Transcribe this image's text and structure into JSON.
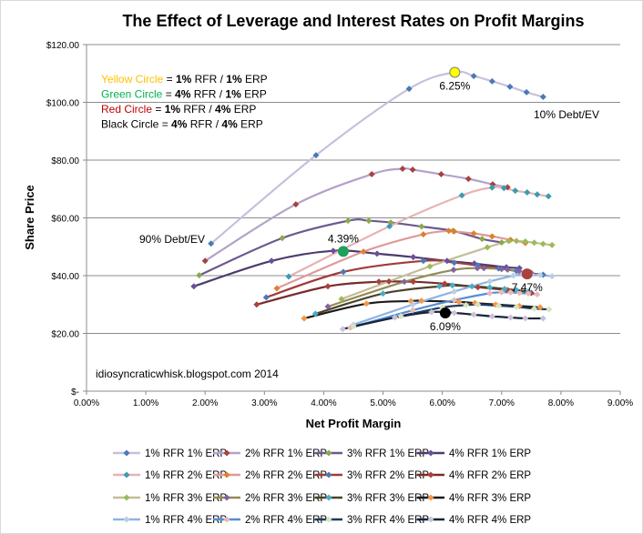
{
  "chart_data": {
    "type": "line",
    "title": "The Effect of Leverage and Interest Rates on Profit Margins",
    "xlabel": "Net Profit Margin",
    "ylabel": "Share Price",
    "xlim": [
      0,
      9
    ],
    "ylim": [
      0,
      120
    ],
    "x_ticks": [
      "0.00%",
      "1.00%",
      "2.00%",
      "3.00%",
      "4.00%",
      "5.00%",
      "6.00%",
      "7.00%",
      "8.00%",
      "9.00%"
    ],
    "y_ticks": [
      "$-",
      "$20.00",
      "$40.00",
      "$60.00",
      "$80.00",
      "$100.00",
      "$120.00"
    ],
    "grid": "horizontal",
    "legend_position": "bottom",
    "series": [
      {
        "name": "1% RFR 1% ERP",
        "line": "#c9bfdd",
        "marker": "#4a7ab5",
        "x": [
          2.1,
          3.87,
          5.44,
          6.21,
          6.53,
          6.84,
          7.14,
          7.42,
          7.7
        ],
        "y": [
          51.1,
          81.7,
          104.7,
          110.4,
          109.1,
          107.3,
          105.4,
          103.5,
          101.9
        ]
      },
      {
        "name": "2% RFR 1% ERP",
        "line": "#b3a2c9",
        "marker": "#a8423f",
        "x": [
          2.0,
          3.53,
          4.81,
          5.33,
          5.5,
          5.98,
          6.44,
          6.85,
          7.1
        ],
        "y": [
          45.1,
          64.7,
          75.1,
          77.0,
          76.7,
          75.1,
          73.5,
          71.6,
          70.6
        ]
      },
      {
        "name": "3% RFR 1% ERP",
        "line": "#6b5a8e",
        "marker": "#8aaa4a",
        "x": [
          1.9,
          3.3,
          4.41,
          4.76,
          5.13,
          5.65,
          6.18,
          6.67,
          7.0
        ],
        "y": [
          40.1,
          53.0,
          59.0,
          59.0,
          58.4,
          57.0,
          55.5,
          52.7,
          51.5
        ]
      },
      {
        "name": "4% RFR 1% ERP",
        "line": "#4c3b6b",
        "marker": "#6b4f9a",
        "x": [
          1.81,
          3.12,
          4.16,
          4.9,
          5.51,
          6.08,
          6.54,
          7.08,
          7.3
        ],
        "y": [
          36.3,
          45.1,
          48.6,
          47.6,
          46.4,
          45.1,
          44.2,
          42.9,
          42.6
        ]
      },
      {
        "name": "1% RFR 2% ERP",
        "line": "#e6b3b3",
        "marker": "#3c9bb0",
        "x": [
          3.41,
          5.11,
          6.33,
          6.84,
          7.04,
          7.23,
          7.43,
          7.6,
          7.79
        ],
        "y": [
          39.7,
          57.1,
          67.8,
          70.5,
          70.3,
          69.4,
          68.8,
          68.1,
          67.5
        ]
      },
      {
        "name": "2% RFR 2% ERP",
        "line": "#e09a9a",
        "marker": "#e07f30",
        "x": [
          3.21,
          4.67,
          5.68,
          6.11,
          6.2,
          6.53,
          6.84,
          7.15,
          7.4
        ],
        "y": [
          35.6,
          48.3,
          54.3,
          55.5,
          55.3,
          54.6,
          53.6,
          52.4,
          51.3
        ]
      },
      {
        "name": "3% RFR 2% ERP",
        "line": "#a13b3b",
        "marker": "#4a7ab5",
        "x": [
          3.03,
          4.33,
          5.68,
          6.2,
          6.6,
          6.95,
          7.25,
          7.5,
          7.7
        ],
        "y": [
          32.5,
          41.3,
          45.1,
          44.5,
          43.5,
          42.5,
          41.6,
          40.8,
          40.3
        ]
      },
      {
        "name": "4% RFR 2% ERP",
        "line": "#7a2b2b",
        "marker": "#a8423f",
        "x": [
          2.87,
          4.07,
          4.93,
          5.1,
          5.51,
          6.04,
          6.6,
          7.1,
          7.5
        ],
        "y": [
          30.0,
          36.3,
          37.9,
          38.0,
          37.9,
          37.2,
          36.0,
          35.0,
          34.0
        ]
      },
      {
        "name": "1% RFR 3% ERP",
        "line": "#c4bd97",
        "marker": "#9bbb59",
        "x": [
          4.3,
          5.79,
          6.76,
          7.12,
          7.25,
          7.4,
          7.55,
          7.7,
          7.85
        ],
        "y": [
          31.9,
          43.2,
          49.8,
          52.0,
          52.0,
          51.8,
          51.4,
          51.0,
          50.6
        ]
      },
      {
        "name": "2% RFR 3% ERP",
        "line": "#948a54",
        "marker": "#8064a2",
        "x": [
          4.07,
          5.36,
          6.19,
          6.59,
          6.7,
          7.0,
          7.1,
          7.3,
          7.5
        ],
        "y": [
          29.3,
          37.9,
          42.0,
          42.6,
          42.6,
          42.3,
          42.1,
          41.5,
          40.9
        ]
      },
      {
        "name": "3% RFR 3% ERP",
        "line": "#4a452a",
        "marker": "#4bacc6",
        "x": [
          3.86,
          5.0,
          5.95,
          6.17,
          6.5,
          6.8,
          7.05,
          7.25,
          7.45
        ],
        "y": [
          26.8,
          33.8,
          36.3,
          36.6,
          36.3,
          35.9,
          35.4,
          35.0,
          34.5
        ]
      },
      {
        "name": "4% RFR 3% ERP",
        "line": "#1a1a1a",
        "marker": "#f79646",
        "x": [
          3.67,
          4.72,
          5.47,
          5.65,
          6.28,
          6.55,
          6.9,
          7.3,
          7.65
        ],
        "y": [
          25.2,
          30.3,
          31.2,
          31.3,
          30.9,
          30.5,
          30.0,
          29.5,
          29.0
        ]
      },
      {
        "name": "1% RFR 4% ERP",
        "line": "#8eb4e3",
        "marker": "#b9cde5",
        "x": [
          4.5,
          5.5,
          6.2,
          6.8,
          7.2,
          7.35,
          7.5,
          7.65,
          7.85
        ],
        "y": [
          23.0,
          30.0,
          34.5,
          38.0,
          40.0,
          40.5,
          40.4,
          40.2,
          39.8
        ]
      },
      {
        "name": "2% RFR 4% ERP",
        "line": "#558ed5",
        "marker": "#e6b9b8",
        "x": [
          4.45,
          5.5,
          6.2,
          6.8,
          7.0,
          7.15,
          7.3,
          7.45,
          7.6
        ],
        "y": [
          22.0,
          28.0,
          31.5,
          33.9,
          34.2,
          34.2,
          34.0,
          33.8,
          33.5
        ]
      },
      {
        "name": "3% RFR 4% ERP",
        "line": "#1f3a5f",
        "marker": "#d7e4bd",
        "x": [
          4.5,
          5.3,
          6.0,
          6.4,
          6.6,
          6.95,
          7.25,
          7.55,
          7.8
        ],
        "y": [
          22.5,
          26.0,
          29.0,
          29.8,
          30.0,
          29.6,
          29.2,
          28.6,
          28.3
        ]
      },
      {
        "name": "4% RFR 4% ERP",
        "line": "#17253a",
        "marker": "#ccc1da",
        "x": [
          4.32,
          5.2,
          5.82,
          6.2,
          6.53,
          6.84,
          7.15,
          7.4,
          7.7
        ],
        "y": [
          21.5,
          25.5,
          27.4,
          27.1,
          26.5,
          25.9,
          25.5,
          25.2,
          25.2
        ]
      }
    ],
    "highlight_points": [
      {
        "color": "#ffff00",
        "x": 6.21,
        "y": 110.4,
        "label": "6.25%",
        "label_pos": "below"
      },
      {
        "color": "#1fa05a",
        "x": 4.33,
        "y": 48.4,
        "label": "4.39%",
        "label_pos": "above"
      },
      {
        "color": "#a8423f",
        "x": 7.43,
        "y": 40.6,
        "label": "7.47%",
        "label_pos": "below"
      },
      {
        "color": "#000000",
        "x": 6.05,
        "y": 27.1,
        "label": "6.09%",
        "label_pos": "below"
      }
    ],
    "annotations": {
      "debt_90": "90% Debt/EV",
      "debt_10": "10% Debt/EV",
      "watermark": "idiosyncraticwhisk.blogspot.com    2014",
      "key_lines": [
        [
          {
            "t": "Yellow Circle",
            "c": "#ffc000",
            "b": false
          },
          {
            "t": " = ",
            "c": "#000",
            "b": false
          },
          {
            "t": "1%",
            "c": "#000",
            "b": true
          },
          {
            "t": " RFR / ",
            "c": "#000",
            "b": false
          },
          {
            "t": "1%",
            "c": "#000",
            "b": true
          },
          {
            "t": " ERP",
            "c": "#000",
            "b": false
          }
        ],
        [
          {
            "t": "Green Circle",
            "c": "#00b050",
            "b": false
          },
          {
            "t": " = ",
            "c": "#000",
            "b": false
          },
          {
            "t": "4%",
            "c": "#000",
            "b": true
          },
          {
            "t": " RFR / ",
            "c": "#000",
            "b": false
          },
          {
            "t": "1%",
            "c": "#000",
            "b": true
          },
          {
            "t": " ERP",
            "c": "#000",
            "b": false
          }
        ],
        [
          {
            "t": "Red Circle",
            "c": "#c00000",
            "b": false
          },
          {
            "t": " = ",
            "c": "#000",
            "b": false
          },
          {
            "t": "1%",
            "c": "#000",
            "b": true
          },
          {
            "t": " RFR / ",
            "c": "#000",
            "b": false
          },
          {
            "t": "4%",
            "c": "#000",
            "b": true
          },
          {
            "t": " ERP",
            "c": "#000",
            "b": false
          }
        ],
        [
          {
            "t": "Black Circle",
            "c": "#000",
            "b": false
          },
          {
            "t": " = ",
            "c": "#000",
            "b": false
          },
          {
            "t": "4%",
            "c": "#000",
            "b": true
          },
          {
            "t": " RFR / ",
            "c": "#000",
            "b": false
          },
          {
            "t": "4%",
            "c": "#000",
            "b": true
          },
          {
            "t": " ERP",
            "c": "#000",
            "b": false
          }
        ]
      ]
    }
  }
}
